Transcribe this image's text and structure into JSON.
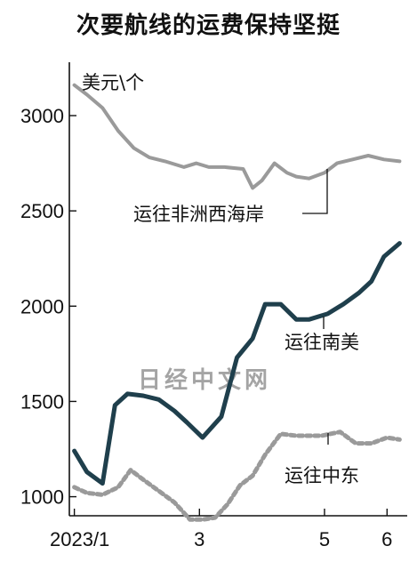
{
  "title": "次要航线的运费保持坚挺",
  "watermark": "日经中文网",
  "colors": {
    "west_africa": "#9a9a9a",
    "south_america": "#1f3f4c",
    "middle_east": "#9a9a9a",
    "axis": "#111111"
  },
  "chart_data": {
    "type": "line",
    "title": "次要航线的运费保持坚挺",
    "ylabel": "美元\\个",
    "xlabel": "",
    "ylim": [
      900,
      3280
    ],
    "xlim": [
      0.92,
      6.28
    ],
    "yticks": [
      1000,
      1500,
      2000,
      2500,
      3000
    ],
    "xticks": [
      {
        "value": 1,
        "label": "2023/1"
      },
      {
        "value": 3,
        "label": "3"
      },
      {
        "value": 5,
        "label": "5"
      },
      {
        "value": 6,
        "label": "6"
      }
    ],
    "series": [
      {
        "name": "运往非洲西海岸",
        "style": "solid-light",
        "x": [
          1.0,
          1.2,
          1.45,
          1.7,
          1.95,
          2.2,
          2.45,
          2.75,
          2.95,
          3.15,
          3.4,
          3.7,
          3.85,
          4.0,
          4.2,
          4.4,
          4.55,
          4.75,
          5.0,
          5.2,
          5.45,
          5.7,
          5.95,
          6.2
        ],
        "y": [
          3160,
          3110,
          3040,
          2920,
          2830,
          2780,
          2760,
          2730,
          2750,
          2730,
          2730,
          2720,
          2620,
          2660,
          2750,
          2700,
          2680,
          2670,
          2700,
          2750,
          2770,
          2790,
          2770,
          2760
        ]
      },
      {
        "name": "运往南美",
        "style": "solid-dark",
        "x": [
          1.0,
          1.2,
          1.45,
          1.65,
          1.85,
          2.1,
          2.35,
          2.6,
          2.8,
          3.05,
          3.35,
          3.6,
          3.85,
          4.05,
          4.3,
          4.55,
          4.75,
          5.05,
          5.3,
          5.55,
          5.75,
          5.95,
          6.2
        ],
        "y": [
          1240,
          1130,
          1070,
          1480,
          1540,
          1530,
          1510,
          1450,
          1390,
          1310,
          1420,
          1730,
          1830,
          2010,
          2010,
          1930,
          1930,
          1960,
          2010,
          2070,
          2130,
          2260,
          2330
        ]
      },
      {
        "name": "运往中东",
        "style": "dotted",
        "x": [
          1.0,
          1.2,
          1.45,
          1.7,
          1.9,
          2.1,
          2.35,
          2.6,
          2.85,
          3.05,
          3.25,
          3.45,
          3.65,
          3.85,
          4.05,
          4.3,
          4.55,
          4.75,
          4.95,
          5.25,
          5.5,
          5.75,
          6.0,
          6.2
        ],
        "y": [
          1050,
          1020,
          1010,
          1050,
          1140,
          1090,
          1030,
          970,
          880,
          880,
          890,
          960,
          1060,
          1110,
          1220,
          1330,
          1320,
          1320,
          1320,
          1340,
          1280,
          1280,
          1310,
          1300
        ]
      }
    ],
    "annotations": [
      {
        "text": "运往非洲西海岸",
        "series": 0
      },
      {
        "text": "运往南美",
        "series": 1
      },
      {
        "text": "运往中东",
        "series": 2
      }
    ]
  }
}
